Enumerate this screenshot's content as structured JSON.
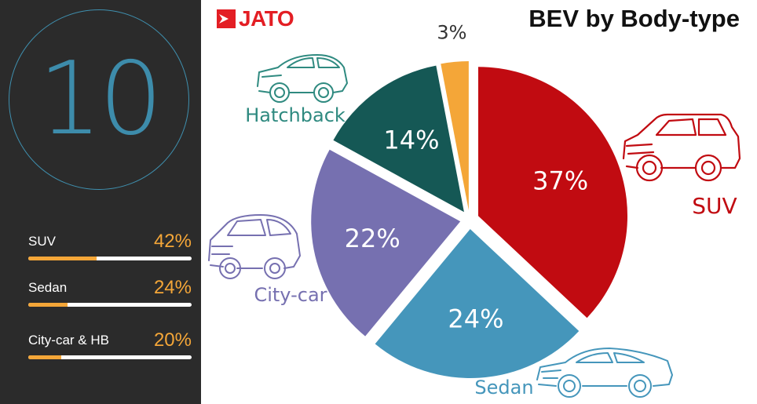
{
  "brand": {
    "logo_text": "JATO",
    "color": "#e31e24"
  },
  "title": "BEV by Body-type",
  "left_panel": {
    "big_number": "10",
    "stats": [
      {
        "label": "SUV",
        "value_text": "42%",
        "fraction": 0.42
      },
      {
        "label": "Sedan",
        "value_text": "24%",
        "fraction": 0.24
      },
      {
        "label": "City-car & HB",
        "value_text": "20%",
        "fraction": 0.2
      }
    ],
    "colors": {
      "background": "#2b2b2b",
      "accent": "#f4a638",
      "ring": "#3f8fae"
    }
  },
  "chart_data": {
    "type": "pie",
    "title": "BEV by Body-type",
    "slices": [
      {
        "name": "SUV",
        "value": 37,
        "label": "37%",
        "color": "#c10b11"
      },
      {
        "name": "Sedan",
        "value": 24,
        "label": "24%",
        "color": "#4596bb"
      },
      {
        "name": "City-car",
        "value": 22,
        "label": "22%",
        "color": "#7670b0"
      },
      {
        "name": "Hatchback",
        "value": 14,
        "label": "14%",
        "color": "#155855"
      },
      {
        "name": "",
        "value": 3,
        "label": "3%",
        "color": "#f4a638"
      }
    ],
    "exploded": true
  },
  "icons": [
    "suv-car-icon",
    "sedan-car-icon",
    "city-car-icon",
    "hatchback-car-icon"
  ]
}
